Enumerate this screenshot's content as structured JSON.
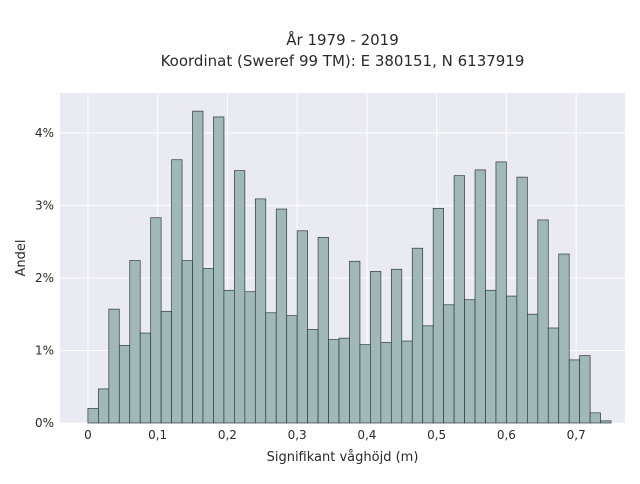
{
  "chart_data": {
    "type": "bar",
    "title": "År 1979 - 2019",
    "subtitle": "Koordinat (Sweref 99 TM): E 380151, N 6137919",
    "xlabel": "Signifikant våghöjd (m)",
    "ylabel": "Andel",
    "xlim": [
      -0.04,
      0.77
    ],
    "ylim": [
      0,
      0.0455
    ],
    "x_ticks": [
      0,
      0.1,
      0.2,
      0.3,
      0.4,
      0.5,
      0.6,
      0.7
    ],
    "x_tick_labels": [
      "0",
      "0,1",
      "0,2",
      "0,3",
      "0,4",
      "0,5",
      "0,6",
      "0,7"
    ],
    "y_ticks": [
      0,
      0.01,
      0.02,
      0.03,
      0.04
    ],
    "y_tick_labels": [
      "0%",
      "1%",
      "2%",
      "3%",
      "4%"
    ],
    "bin_width": 0.015,
    "bin_start": 0.0,
    "values": [
      0.002,
      0.0047,
      0.0157,
      0.0107,
      0.0224,
      0.0124,
      0.0283,
      0.0154,
      0.0363,
      0.0224,
      0.043,
      0.0213,
      0.0422,
      0.0183,
      0.0348,
      0.0181,
      0.0309,
      0.0152,
      0.0295,
      0.0148,
      0.0265,
      0.0129,
      0.0256,
      0.0115,
      0.0117,
      0.0223,
      0.0108,
      0.0209,
      0.0111,
      0.0212,
      0.0113,
      0.0241,
      0.0134,
      0.0296,
      0.0163,
      0.0341,
      0.017,
      0.0349,
      0.0183,
      0.036,
      0.0175,
      0.0339,
      0.015,
      0.028,
      0.0131,
      0.0233,
      0.0087,
      0.0093,
      0.0014,
      0.0003
    ],
    "grid": true,
    "colors": {
      "bar_fill": "#a1b8b8",
      "bar_edge": "#2e3b3b",
      "plot_bg": "#eaeaf2",
      "grid": "#ffffff",
      "text": "#2a2a2a"
    }
  }
}
